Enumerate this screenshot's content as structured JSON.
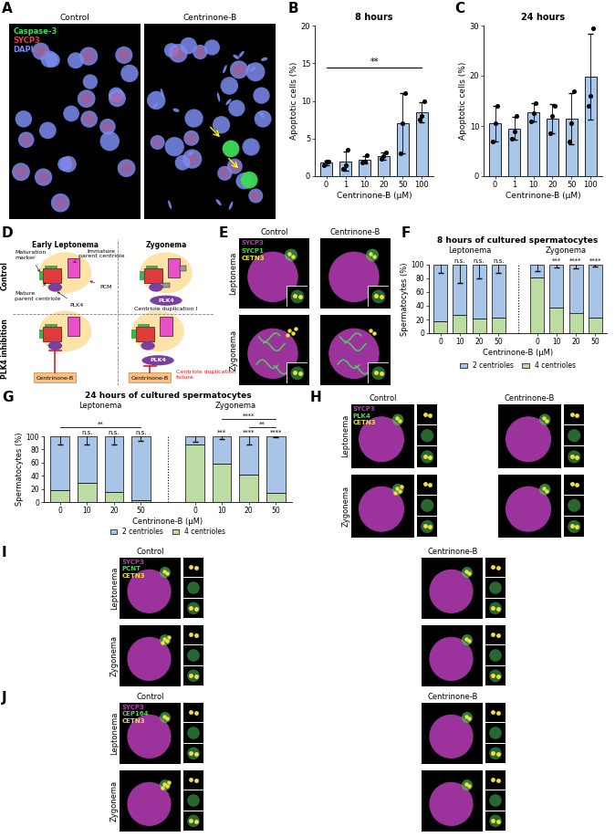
{
  "chart_data": [
    {
      "panel": "B",
      "type": "bar",
      "title": "8 hours",
      "x_label": "Centrinone-B (µM)",
      "y_label": "Apoptotic cells (%)",
      "categories": [
        "0",
        "1",
        "10",
        "20",
        "50",
        "100"
      ],
      "values": [
        1.8,
        2.0,
        2.2,
        2.7,
        7.0,
        8.5
      ],
      "errors": [
        0.3,
        1.3,
        0.5,
        0.5,
        4.0,
        1.3
      ],
      "points": [
        [
          1.5,
          2.0,
          1.9
        ],
        [
          1.0,
          1.5,
          3.5
        ],
        [
          1.8,
          2.0,
          2.8
        ],
        [
          2.3,
          2.7,
          3.2
        ],
        [
          3.0,
          7.0,
          11.0
        ],
        [
          7.5,
          8.0,
          10.0
        ]
      ],
      "color": "#a9c6e8",
      "ylim": [
        0,
        20
      ],
      "yticks": [
        0,
        5,
        10,
        15,
        20
      ],
      "brackets": [
        {
          "from": "0",
          "to": "100",
          "label": "**"
        }
      ]
    },
    {
      "panel": "C",
      "type": "bar",
      "title": "24 hours",
      "x_label": "Centrinone-B (µM)",
      "y_label": "Apoptotic cells (%)",
      "categories": [
        "0",
        "1",
        "10",
        "20",
        "50",
        "100"
      ],
      "values": [
        10.5,
        9.5,
        12.7,
        11.5,
        11.5,
        19.8
      ],
      "errors": [
        3.5,
        2.3,
        1.8,
        2.9,
        5.1,
        8.5
      ],
      "points": [
        [
          7.0,
          10.5,
          14.0
        ],
        [
          7.5,
          9.0,
          12.0
        ],
        [
          11.0,
          12.5,
          14.5
        ],
        [
          8.5,
          12.0,
          14.0
        ],
        [
          7.0,
          10.5,
          17.0
        ],
        [
          14.0,
          16.0,
          29.5
        ]
      ],
      "color": "#a9c6e8",
      "ylim": [
        0,
        30
      ],
      "yticks": [
        0,
        10,
        20,
        30
      ]
    },
    {
      "panel": "F",
      "type": "bar",
      "stacked": true,
      "title": "8 hours of cultured spermatocytes",
      "x_label": "Centrinone-B (µM)",
      "y_label": "Spermatocytes (%)",
      "ylim": [
        0,
        100
      ],
      "yticks": [
        0,
        20,
        40,
        60,
        80,
        100
      ],
      "legend": "lower center",
      "groups": [
        {
          "name": "Leptonema",
          "categories": [
            "0",
            "10",
            "20",
            "50"
          ],
          "significance": [
            null,
            "n.s.",
            "n.s.",
            "n.s."
          ]
        },
        {
          "name": "Zygonema",
          "categories": [
            "0",
            "10",
            "20",
            "50"
          ],
          "significance": [
            null,
            "***",
            "****",
            "****"
          ]
        }
      ],
      "series": [
        {
          "name": "2 centrioles",
          "color": "#a8c4e6",
          "values": [
            [
              82,
              73,
              79,
              77
            ],
            [
              19,
              63,
              70,
              77
            ]
          ],
          "errors": [
            [
              12,
              27,
              20,
              12
            ],
            [
              9,
              4,
              5,
              3
            ]
          ]
        },
        {
          "name": "4 centrioles",
          "color": "#bcdca4",
          "values": [
            [
              18,
              27,
              21,
              23
            ],
            [
              81,
              37,
              30,
              23
            ]
          ]
        }
      ]
    },
    {
      "panel": "G",
      "type": "bar",
      "stacked": true,
      "title": "24 hours of cultured spermatocytes",
      "x_label": "Centrinone-B (µM)",
      "y_label": "Spermatocytes (%)",
      "ylim": [
        0,
        100
      ],
      "yticks": [
        0,
        20,
        40,
        60,
        80,
        100
      ],
      "legend": "lower center",
      "groups": [
        {
          "name": "Leptonema",
          "categories": [
            "0",
            "10",
            "20",
            "50"
          ],
          "significance": [
            null,
            "n.s.",
            "n.s.",
            "n.s."
          ],
          "brackets": [
            {
              "from": "0",
              "to": "50",
              "label": "**"
            }
          ]
        },
        {
          "name": "Zygonema",
          "categories": [
            "0",
            "10",
            "20",
            "50"
          ],
          "significance": [
            null,
            "***",
            "****",
            "****"
          ],
          "brackets": [
            {
              "from": "20",
              "to": "50",
              "label": "**"
            },
            {
              "from": "10",
              "to": "50",
              "label": "****"
            }
          ]
        }
      ],
      "series": [
        {
          "name": "2 centrioles",
          "color": "#a8c4e6",
          "values": [
            [
              82,
              71,
              85,
              97
            ],
            [
              12,
              41,
              58,
              86
            ]
          ],
          "errors": [
            [
              12,
              12,
              13,
              7
            ],
            [
              8,
              4,
              12,
              2
            ]
          ]
        },
        {
          "name": "4 centrioles",
          "color": "#bcdca4",
          "values": [
            [
              18,
              29,
              15,
              3
            ],
            [
              88,
              59,
              42,
              14
            ]
          ]
        }
      ]
    }
  ],
  "diagram": {
    "panel": "D",
    "columns": [
      "Early Leptonema",
      "Zygonema"
    ],
    "rows": [
      "Control",
      "PLK4 inhibition"
    ],
    "labels": {
      "maturation": "Maturation\nmarker",
      "immature": "Immature\nparent centriole",
      "mature": "Mature\nparent centriole",
      "plk4": "PLK4",
      "pcm": "PCM",
      "duplication": "Centriole duplication I",
      "inhibitor": "Centrinone-B",
      "failure": "Centriole duplication\nfailure"
    }
  },
  "images": [
    {
      "panel": "A",
      "columns": [
        "Control",
        "Centrinone-B"
      ],
      "channels": [
        {
          "name": "Caspase-3",
          "color": "#3ddc5a"
        },
        {
          "name": "SYCP3",
          "color": "#e0405a"
        },
        {
          "name": "DAPI",
          "color": "#7b8cf0"
        }
      ]
    },
    {
      "panel": "E",
      "columns": [
        "Control",
        "Centrinone-B"
      ],
      "rows": [
        "Leptonema",
        "Zygonema"
      ],
      "channels": [
        {
          "name": "SYCP3",
          "color": "#b83cb8"
        },
        {
          "name": "SYCP1",
          "color": "#50d060"
        },
        {
          "name": "CETN3",
          "color": "#f0e040"
        }
      ]
    },
    {
      "panel": "H",
      "columns": [
        "Control",
        "Centrinone-B"
      ],
      "rows": [
        "Leptonema",
        "Zygonema"
      ],
      "channels": [
        {
          "name": "SYCP3",
          "color": "#b83cb8"
        },
        {
          "name": "PLK4",
          "color": "#50d060"
        },
        {
          "name": "CETN3",
          "color": "#f0e040"
        }
      ]
    },
    {
      "panel": "I",
      "columns": [
        "Control",
        "Centrinone-B"
      ],
      "rows": [
        "Leptonema",
        "Zygonema"
      ],
      "channels": [
        {
          "name": "SYCP3",
          "color": "#b83cb8"
        },
        {
          "name": "PCNT",
          "color": "#50d060"
        },
        {
          "name": "CETN3",
          "color": "#f0e040"
        }
      ]
    },
    {
      "panel": "J",
      "columns": [
        "Control",
        "Centrinone-B"
      ],
      "rows": [
        "Leptonema",
        "Zygonema"
      ],
      "channels": [
        {
          "name": "SYCP3",
          "color": "#b83cb8"
        },
        {
          "name": "CEP164",
          "color": "#50d060"
        },
        {
          "name": "CETN3",
          "color": "#f0e040"
        }
      ]
    }
  ]
}
